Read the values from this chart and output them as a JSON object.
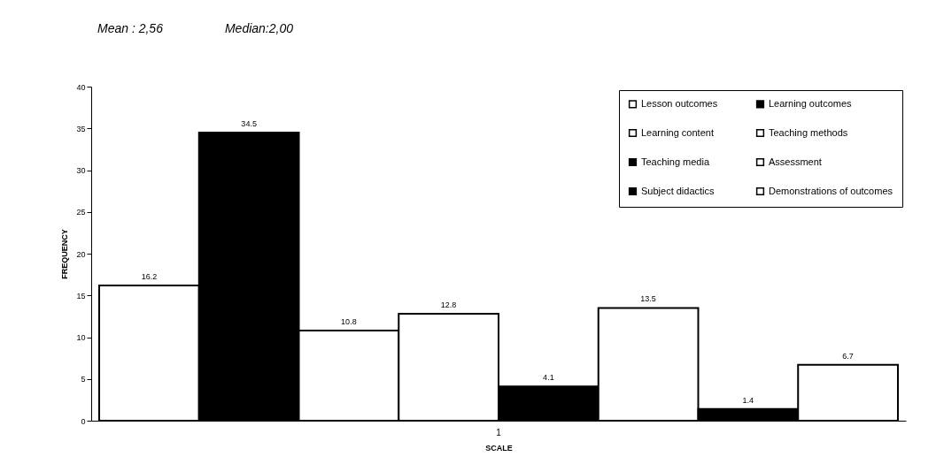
{
  "chart_data": {
    "type": "bar",
    "annotations": [
      "Mean : 2,56",
      "Median:2,00"
    ],
    "xlabel": "SCALE",
    "ylabel": "FREQUENCY",
    "categories": [
      "1"
    ],
    "series": [
      {
        "name": "Lesson outcomes",
        "color": "#ffffff",
        "values": [
          16.2
        ]
      },
      {
        "name": "Learning outcomes",
        "color": "#000000",
        "values": [
          34.5
        ]
      },
      {
        "name": "Learning content",
        "color": "#ffffff",
        "values": [
          10.8
        ]
      },
      {
        "name": "Teaching methods",
        "color": "#ffffff",
        "values": [
          12.8
        ]
      },
      {
        "name": "Teaching media",
        "color": "#000000",
        "values": [
          4.1
        ]
      },
      {
        "name": "Assessment",
        "color": "#ffffff",
        "values": [
          13.5
        ]
      },
      {
        "name": "Subject didactics",
        "color": "#000000",
        "values": [
          1.4
        ]
      },
      {
        "name": "Demonstrations of outcomes",
        "color": "#ffffff",
        "values": [
          6.7
        ]
      }
    ],
    "data_labels": true,
    "ylim": [
      0,
      40
    ],
    "yticks": [
      0,
      5,
      10,
      15,
      20,
      25,
      30,
      35,
      40
    ],
    "grid": false,
    "legend": "top right"
  }
}
